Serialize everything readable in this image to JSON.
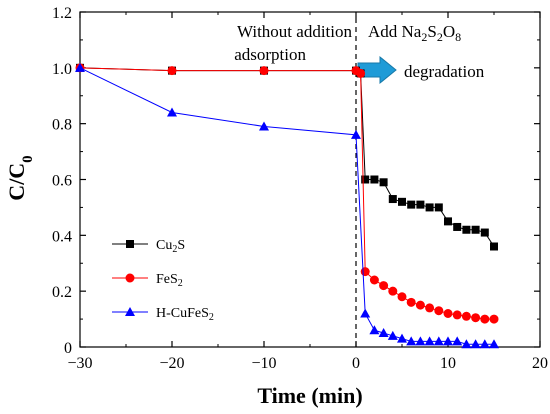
{
  "chart_data": {
    "type": "line",
    "xlabel": "Time (min)",
    "ylabel": {
      "base": "C/C",
      "sub": "0"
    },
    "xlim": [
      -30,
      20
    ],
    "ylim": [
      0,
      1.2
    ],
    "xticks": [
      -30,
      -20,
      -10,
      0,
      10,
      20
    ],
    "xtick_labels": [
      "−30",
      "−20",
      "−10",
      "0",
      "10",
      "20"
    ],
    "yticks": [
      0,
      0.2,
      0.4,
      0.6,
      0.8,
      1.0,
      1.2
    ],
    "ytick_labels": [
      "0",
      "0.2",
      "0.4",
      "0.6",
      "0.8",
      "1.0",
      "1.2"
    ],
    "grid": false,
    "legend_position": "bottom-left",
    "annotations": {
      "left_line1": "Without addition",
      "left_line2": "adsorption",
      "right_prefix": "Add Na",
      "right_s1": "2",
      "right_mid1": "S",
      "right_s2": "2",
      "right_mid2": "O",
      "right_s3": "8",
      "right_line2": "degradation"
    },
    "vline_x": 0,
    "series": [
      {
        "name_base": "Cu",
        "name_sub": "2",
        "name_tail": "S",
        "color": "#000000",
        "marker": "square",
        "x": [
          -30,
          -20,
          -10,
          0,
          0.5,
          1,
          2,
          3,
          4,
          5,
          6,
          7,
          8,
          9,
          10,
          11,
          12,
          13,
          14,
          15
        ],
        "y": [
          1.0,
          0.99,
          0.99,
          0.99,
          0.98,
          0.6,
          0.6,
          0.59,
          0.53,
          0.52,
          0.51,
          0.51,
          0.5,
          0.5,
          0.45,
          0.43,
          0.42,
          0.42,
          0.41,
          0.36
        ]
      },
      {
        "name_base": "FeS",
        "name_sub": "2",
        "name_tail": "",
        "color": "#ff0000",
        "marker": "circle",
        "x": [
          -30,
          -20,
          -10,
          0,
          0.5,
          1,
          2,
          3,
          4,
          5,
          6,
          7,
          8,
          9,
          10,
          11,
          12,
          13,
          14,
          15
        ],
        "y": [
          1.0,
          0.99,
          0.99,
          0.99,
          0.98,
          0.27,
          0.24,
          0.22,
          0.2,
          0.18,
          0.16,
          0.15,
          0.14,
          0.13,
          0.12,
          0.115,
          0.11,
          0.105,
          0.1,
          0.1
        ]
      },
      {
        "name_base": "H-CuFeS",
        "name_sub": "2",
        "name_tail": "",
        "color": "#0000ff",
        "marker": "triangle",
        "x": [
          -30,
          -20,
          -10,
          0,
          1,
          2,
          3,
          4,
          5,
          6,
          7,
          8,
          9,
          10,
          11,
          12,
          13,
          14,
          15
        ],
        "y": [
          1.0,
          0.84,
          0.79,
          0.76,
          0.12,
          0.06,
          0.05,
          0.04,
          0.03,
          0.02,
          0.02,
          0.02,
          0.02,
          0.02,
          0.02,
          0.01,
          0.01,
          0.01,
          0.01
        ]
      }
    ],
    "arrow_color": "#1f9bd7"
  }
}
